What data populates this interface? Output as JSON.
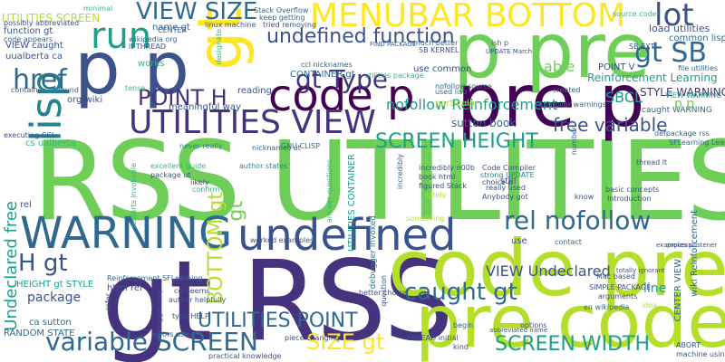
{
  "palette": {
    "navy": "#46337e",
    "indigo": "#3b528b",
    "steel": "#31688e",
    "teal": "#26828e",
    "sea": "#1f9e89",
    "green": "#35b779",
    "lime": "#6ece58",
    "yellowgreen": "#b5de2b",
    "yellow": "#fde725",
    "purple": "#440154"
  },
  "words": [
    {
      "text": "RSS UTILITIES",
      "color": "lime"
    },
    {
      "text": "gt RSS",
      "color": "navy"
    },
    {
      "text": "code pre",
      "color": "yellowgreen"
    },
    {
      "text": "pre code",
      "color": "yellowgreen"
    },
    {
      "text": "p pre",
      "color": "lime"
    },
    {
      "text": "pre p",
      "color": "purple"
    },
    {
      "text": "code p",
      "color": "purple"
    },
    {
      "text": "p p",
      "color": "indigo"
    },
    {
      "text": "gt",
      "color": "yellow"
    },
    {
      "text": "lisp",
      "color": "teal"
    },
    {
      "text": "WARNING",
      "color": "steel"
    },
    {
      "text": "undefined",
      "color": "indigo"
    },
    {
      "text": "MENUBAR BOTTOM",
      "color": "yellow"
    },
    {
      "text": "UTILITIES VIEW",
      "color": "navy"
    },
    {
      "text": "run",
      "color": "sea"
    },
    {
      "text": "VIEW SIZE",
      "color": "steel"
    },
    {
      "text": "gt Type",
      "color": "navy"
    },
    {
      "text": "lot",
      "color": "indigo"
    },
    {
      "text": "href",
      "color": "steel"
    },
    {
      "text": "gt SB",
      "color": "steel"
    },
    {
      "text": "POINT H",
      "color": "navy"
    },
    {
      "text": "undefined function",
      "color": "indigo"
    },
    {
      "text": "SCREEN HEIGHT",
      "color": "sea"
    },
    {
      "text": "free variable",
      "color": "indigo"
    },
    {
      "text": "nofollow Reinforcement",
      "color": "sea"
    },
    {
      "text": "rel nofollow",
      "color": "steel"
    },
    {
      "text": "caught gt",
      "color": "steel"
    },
    {
      "text": "variable SCREEN",
      "color": "steel"
    },
    {
      "text": "UTILITIES POINT",
      "color": "steel"
    },
    {
      "text": "SCREEN WIDTH",
      "color": "sea"
    },
    {
      "text": "SIZE gt",
      "color": "yellow"
    },
    {
      "text": "H gt",
      "color": "indigo"
    },
    {
      "text": "BOTTOM gt",
      "color": "yellowgreen"
    },
    {
      "text": "gt",
      "color": "lime"
    },
    {
      "text": "Undeclared free",
      "color": "sea"
    },
    {
      "text": "VIEW Undeclared",
      "color": "indigo"
    },
    {
      "text": "SBCL",
      "color": "sea"
    },
    {
      "text": "STYLE WARNING",
      "color": "navy"
    },
    {
      "text": "Reinforcement Learning",
      "color": "sea"
    },
    {
      "text": "load utilities",
      "color": "indigo"
    },
    {
      "text": "common lisp",
      "color": "steel"
    },
    {
      "text": "file utilities",
      "color": "steel"
    },
    {
      "text": "POINT V",
      "color": "indigo"
    },
    {
      "text": "able",
      "color": "lime"
    },
    {
      "text": "use common",
      "color": "indigo"
    },
    {
      "text": "CONTAINER gt",
      "color": "steel"
    },
    {
      "text": "sutton book",
      "color": "steel"
    },
    {
      "text": "line",
      "color": "sea"
    },
    {
      "text": "package",
      "color": "indigo"
    },
    {
      "text": "HEIGHT gt STYLE",
      "color": "sea"
    },
    {
      "text": "ca sutton",
      "color": "steel"
    },
    {
      "text": "RANDOM STATE",
      "color": "steel"
    },
    {
      "text": "rel",
      "color": "indigo"
    },
    {
      "text": "html rel",
      "color": "indigo"
    },
    {
      "text": "name gt",
      "color": "steel"
    },
    {
      "text": "uualberta ca",
      "color": "indigo"
    },
    {
      "text": "VIEW caught",
      "color": "indigo"
    },
    {
      "text": "function gt",
      "color": "indigo"
    },
    {
      "text": "code appears",
      "color": "steel"
    },
    {
      "text": "UTILITIES SCREEN",
      "color": "yellowgreen"
    },
    {
      "text": "minimal",
      "color": "green"
    },
    {
      "text": "reading",
      "color": "indigo"
    },
    {
      "text": "meaningful way",
      "color": "indigo"
    },
    {
      "text": "works",
      "color": "green"
    },
    {
      "text": "found",
      "color": "steel"
    },
    {
      "text": "contains",
      "color": "indigo"
    },
    {
      "text": "org wiki",
      "color": "indigo"
    },
    {
      "text": "cs ualberta",
      "color": "green"
    },
    {
      "text": "linux machine",
      "color": "indigo"
    },
    {
      "text": "particular",
      "color": "yellowgreen"
    },
    {
      "text": "used lisp",
      "color": "steel"
    },
    {
      "text": "created",
      "color": "steel"
    },
    {
      "text": "ish p",
      "color": "steel"
    },
    {
      "text": "source code",
      "color": "green"
    },
    {
      "text": "still",
      "color": "indigo"
    },
    {
      "text": "excellent guide",
      "color": "green"
    },
    {
      "text": "likely",
      "color": "indigo"
    },
    {
      "text": "confirm",
      "color": "green"
    },
    {
      "text": "author states",
      "color": "teal"
    },
    {
      "text": "worked examples",
      "color": "indigo"
    },
    {
      "text": "author helpfully",
      "color": "indigo"
    },
    {
      "text": "type HELP",
      "color": "indigo"
    },
    {
      "text": "errors using",
      "color": "indigo"
    },
    {
      "text": "practical knowledge",
      "color": "indigo"
    },
    {
      "text": "kind",
      "color": "indigo"
    },
    {
      "text": "THREAD initial",
      "color": "indigo"
    },
    {
      "text": "begin",
      "color": "steel"
    },
    {
      "text": "options",
      "color": "indigo"
    },
    {
      "text": "Mac based",
      "color": "indigo"
    },
    {
      "text": "use",
      "color": "indigo"
    },
    {
      "text": "contact",
      "color": "steel"
    },
    {
      "text": "really used",
      "color": "indigo"
    },
    {
      "text": "book html",
      "color": "indigo"
    },
    {
      "text": "figured Stack",
      "color": "indigo"
    },
    {
      "text": "choice p",
      "color": "indigo"
    },
    {
      "text": "Introduction",
      "color": "indigo"
    },
    {
      "text": "basic concepts",
      "color": "indigo"
    },
    {
      "text": "know",
      "color": "indigo"
    },
    {
      "text": "idea",
      "color": "yellowgreen"
    },
    {
      "text": "SIMPLE PACKAGE",
      "color": "indigo"
    },
    {
      "text": "arguments",
      "color": "indigo"
    },
    {
      "text": "en wikipedia",
      "color": "steel"
    },
    {
      "text": "CENTER VIEW",
      "color": "steel"
    },
    {
      "text": "wiki Reinforcement",
      "color": "steel"
    },
    {
      "text": "ABORT",
      "color": "indigo"
    },
    {
      "text": "machine using",
      "color": "indigo"
    },
    {
      "text": "refer",
      "color": "indigo"
    },
    {
      "text": "better choice",
      "color": "indigo"
    },
    {
      "text": "incredibly n00b",
      "color": "indigo"
    },
    {
      "text": "Reinforcement SFLearning",
      "color": "steel"
    },
    {
      "text": "Stack Overflow",
      "color": "steel"
    },
    {
      "text": "keep getting",
      "color": "steel"
    },
    {
      "text": "wikipedia org",
      "color": "steel"
    },
    {
      "text": "lt THREAD",
      "color": "indigo"
    },
    {
      "text": "nofollow source",
      "color": "steel"
    },
    {
      "text": "much better",
      "color": "steel"
    },
    {
      "text": "nicknames ut",
      "color": "steel"
    },
    {
      "text": "ccl nicknames",
      "color": "steel"
    },
    {
      "text": "SB KERNEL",
      "color": "indigo"
    },
    {
      "text": "never really",
      "color": "teal"
    },
    {
      "text": "GNU CLISP",
      "color": "steel"
    },
    {
      "text": "caught WARNING",
      "color": "steel"
    },
    {
      "text": "defpackage rss",
      "color": "steel"
    },
    {
      "text": "SFLearning Learning",
      "color": "steel"
    },
    {
      "text": "thread lt",
      "color": "indigo"
    },
    {
      "text": "SB EXT",
      "color": "indigo"
    },
    {
      "text": "p p",
      "color": "lime"
    },
    {
      "text": "VIEW WARNING",
      "color": "sea"
    },
    {
      "text": "Compiler warnings",
      "color": "steel"
    },
    {
      "text": "Code Compiler",
      "color": "indigo"
    },
    {
      "text": "strong UPDATE",
      "color": "teal"
    },
    {
      "text": "tried removing",
      "color": "indigo"
    },
    {
      "text": "possibly abbreviated",
      "color": "indigo"
    },
    {
      "text": "executing CCL",
      "color": "indigo"
    },
    {
      "text": "CENTER",
      "color": "indigo"
    },
    {
      "text": "UTILITIES CONTAINER",
      "color": "sea"
    },
    {
      "text": "debugger invoked",
      "color": "teal"
    },
    {
      "text": "answer questions",
      "color": "green"
    },
    {
      "text": "restarts invokable",
      "color": "green"
    },
    {
      "text": "tense",
      "color": "green"
    },
    {
      "text": "number",
      "color": "steel"
    },
    {
      "text": "incredibly",
      "color": "steel"
    },
    {
      "text": "lgtely",
      "color": "yellowgreen"
    },
    {
      "text": "Anybody got",
      "color": "indigo"
    },
    {
      "text": "something",
      "color": "yellowgreen"
    },
    {
      "text": "piece changing",
      "color": "indigo"
    },
    {
      "text": "ccl seems",
      "color": "indigo"
    },
    {
      "text": "utilities package",
      "color": "green"
    },
    {
      "text": "package ut",
      "color": "indigo"
    },
    {
      "text": "FIND PACKAGE",
      "color": "indigo"
    },
    {
      "text": "UPDATE March",
      "color": "indigo"
    },
    {
      "text": "designate",
      "color": "green"
    },
    {
      "text": "debugger help",
      "color": "indigo"
    },
    {
      "text": "question",
      "color": "indigo"
    },
    {
      "text": "abbreviated name",
      "color": "indigo"
    },
    {
      "text": "totally ignorant",
      "color": "indigo"
    },
    {
      "text": "process listener",
      "color": "indigo"
    },
    {
      "text": "examples p",
      "color": "indigo"
    }
  ]
}
